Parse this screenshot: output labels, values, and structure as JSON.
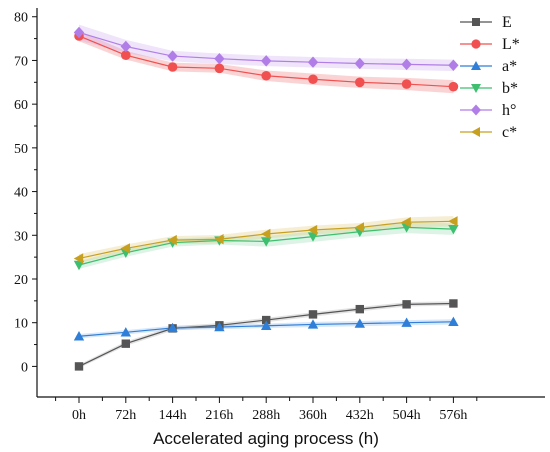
{
  "chart_data": {
    "type": "line",
    "title": "",
    "xlabel": "Accelerated aging process (h)",
    "ylabel": "",
    "categories": [
      "0h",
      "72h",
      "144h",
      "216h",
      "288h",
      "360h",
      "432h",
      "504h",
      "576h"
    ],
    "ylim": [
      -7,
      82
    ],
    "yticks": [
      0,
      10,
      20,
      30,
      40,
      50,
      60,
      70,
      80
    ],
    "grid": false,
    "legend_position": "top-right",
    "series": [
      {
        "name": "E",
        "marker": "square",
        "color": "#555555",
        "band_color": "#a0a0a0",
        "values": [
          0,
          5.2,
          8.7,
          9.4,
          10.6,
          11.9,
          13.1,
          14.2,
          14.4
        ],
        "band": [
          0.4,
          0.5,
          0.5,
          0.5,
          0.5,
          0.5,
          0.5,
          0.5,
          0.5
        ]
      },
      {
        "name": "L*",
        "marker": "circle",
        "color": "#f05050",
        "band_color": "#f07070",
        "values": [
          75.6,
          71.2,
          68.5,
          68.2,
          66.5,
          65.7,
          65.0,
          64.6,
          64.0
        ],
        "band": [
          1.2,
          1.0,
          1.0,
          1.0,
          1.2,
          1.3,
          1.3,
          1.4,
          1.5
        ]
      },
      {
        "name": "a*",
        "marker": "triangle-up",
        "color": "#2f7fd8",
        "band_color": "#7fb0ea",
        "values": [
          6.9,
          7.8,
          8.8,
          9.0,
          9.3,
          9.6,
          9.8,
          10.0,
          10.2
        ],
        "band": [
          0.5,
          0.5,
          0.5,
          0.5,
          0.5,
          0.6,
          0.6,
          0.6,
          0.6
        ]
      },
      {
        "name": "b*",
        "marker": "triangle-down",
        "color": "#3dbf6f",
        "band_color": "#8ad8a8",
        "values": [
          23.2,
          26.0,
          28.3,
          28.8,
          28.6,
          29.7,
          30.8,
          31.8,
          31.4
        ],
        "band": [
          0.9,
          0.9,
          0.9,
          0.9,
          1.2,
          1.2,
          1.2,
          1.3,
          1.3
        ]
      },
      {
        "name": "h°",
        "marker": "diamond",
        "color": "#b07ee6",
        "band_color": "#c9a6f0",
        "values": [
          76.4,
          73.2,
          71.0,
          70.4,
          69.9,
          69.6,
          69.3,
          69.1,
          68.9
        ],
        "band": [
          1.8,
          1.5,
          1.2,
          1.2,
          1.2,
          1.2,
          1.2,
          1.3,
          1.3
        ]
      },
      {
        "name": "c*",
        "marker": "triangle-left",
        "color": "#c8a020",
        "band_color": "#e0c870",
        "values": [
          24.7,
          27.0,
          28.9,
          29.1,
          30.3,
          31.2,
          31.8,
          33.0,
          33.2
        ],
        "band": [
          1.0,
          0.9,
          0.9,
          1.0,
          1.0,
          1.0,
          1.0,
          1.1,
          1.2
        ]
      }
    ]
  }
}
